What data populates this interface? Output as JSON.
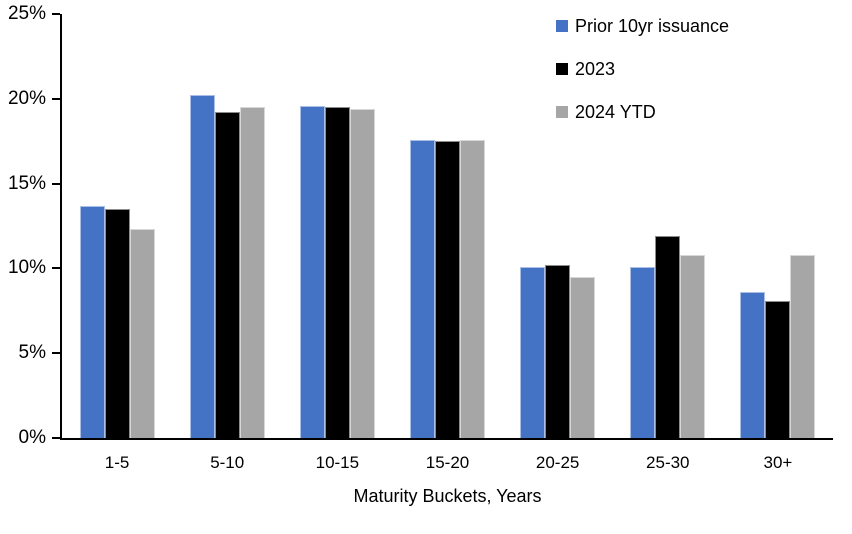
{
  "chart_data": {
    "type": "bar",
    "title": "",
    "xlabel": "Maturity Buckets, Years",
    "ylabel": "",
    "categories": [
      "1-5",
      "5-10",
      "10-15",
      "15-20",
      "20-25",
      "25-30",
      "30+"
    ],
    "series": [
      {
        "name": "Prior 10yr issuance",
        "color": "#4472C4",
        "values": [
          13.7,
          20.2,
          19.6,
          17.6,
          10.1,
          10.1,
          8.6
        ]
      },
      {
        "name": "2023",
        "color": "#000000",
        "values": [
          13.5,
          19.2,
          19.5,
          17.5,
          10.2,
          11.9,
          8.1
        ]
      },
      {
        "name": "2024 YTD",
        "color": "#A6A6A6",
        "values": [
          12.3,
          19.5,
          19.4,
          17.6,
          9.5,
          10.8,
          10.8
        ]
      }
    ],
    "ylim": [
      0,
      25
    ],
    "ytick_step": 5,
    "ytick_labels": [
      "0%",
      "5%",
      "10%",
      "15%",
      "20%",
      "25%"
    ],
    "grid": false,
    "legend_position": "top-right",
    "axis_color": "#000000",
    "background_color": "#FFFFFF"
  }
}
